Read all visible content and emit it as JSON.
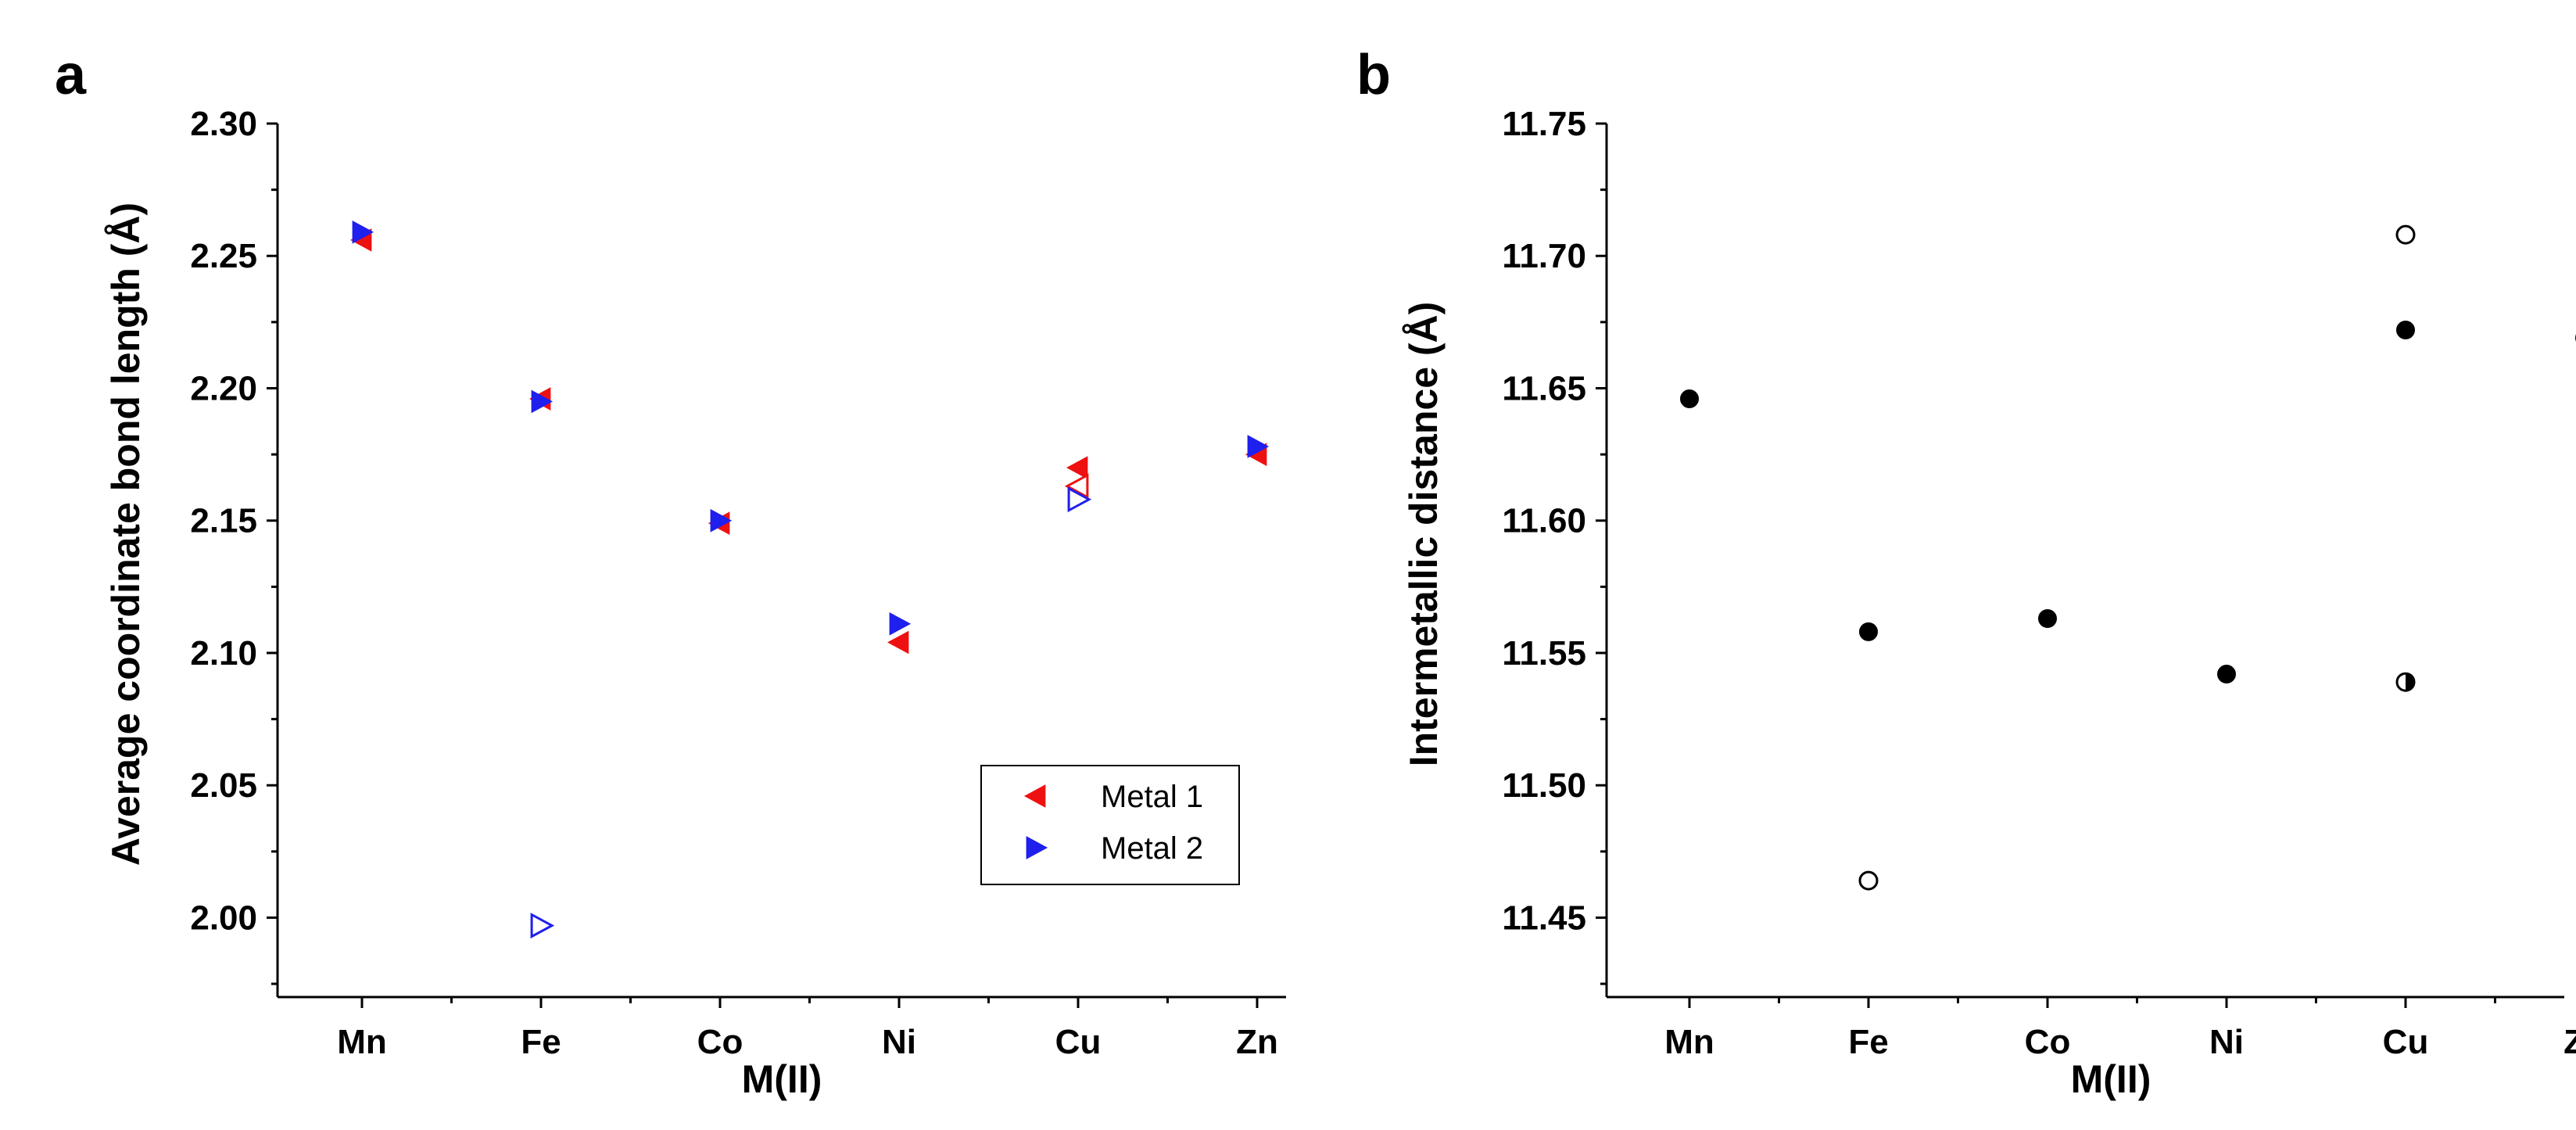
{
  "chart_data": [
    {
      "panel": "a",
      "type": "scatter",
      "xlabel": "M(II)",
      "ylabel": "Average coordinate bond length (Å)",
      "categories": [
        "Mn",
        "Fe",
        "Co",
        "Ni",
        "Cu",
        "Zn"
      ],
      "ylim": [
        1.97,
        2.3
      ],
      "yticks": [
        2.0,
        2.05,
        2.1,
        2.15,
        2.2,
        2.25,
        2.3
      ],
      "ytick_labels": [
        "2.00",
        "2.05",
        "2.10",
        "2.15",
        "2.20",
        "2.25",
        "2.30"
      ],
      "legend": {
        "position": "lower-right",
        "entries": [
          "Metal 1",
          "Metal 2"
        ]
      },
      "series": [
        {
          "name": "Metal 1",
          "marker": "triangle-left",
          "color": "#ee1111",
          "points": [
            {
              "x": "Mn",
              "y": 2.256,
              "filled": true
            },
            {
              "x": "Fe",
              "y": 2.196,
              "filled": true
            },
            {
              "x": "Co",
              "y": 2.149,
              "filled": true
            },
            {
              "x": "Ni",
              "y": 2.104,
              "filled": true
            },
            {
              "x": "Cu",
              "y": 2.17,
              "filled": true
            },
            {
              "x": "Cu",
              "y": 2.163,
              "filled": false
            },
            {
              "x": "Zn",
              "y": 2.175,
              "filled": true
            }
          ]
        },
        {
          "name": "Metal 2",
          "marker": "triangle-right",
          "color": "#1f1fee",
          "points": [
            {
              "x": "Mn",
              "y": 2.259,
              "filled": true
            },
            {
              "x": "Fe",
              "y": 2.195,
              "filled": true
            },
            {
              "x": "Fe",
              "y": 1.997,
              "filled": false
            },
            {
              "x": "Co",
              "y": 2.15,
              "filled": true
            },
            {
              "x": "Ni",
              "y": 2.111,
              "filled": true
            },
            {
              "x": "Cu",
              "y": 2.158,
              "filled": false
            },
            {
              "x": "Zn",
              "y": 2.178,
              "filled": true
            }
          ]
        }
      ]
    },
    {
      "panel": "b",
      "type": "scatter",
      "xlabel": "M(II)",
      "ylabel": "Intermetallic distance (Å)",
      "categories": [
        "Mn",
        "Fe",
        "Co",
        "Ni",
        "Cu",
        "Zn"
      ],
      "ylim": [
        11.42,
        11.75
      ],
      "yticks": [
        11.45,
        11.5,
        11.55,
        11.6,
        11.65,
        11.7,
        11.75
      ],
      "ytick_labels": [
        "11.45",
        "11.50",
        "11.55",
        "11.60",
        "11.65",
        "11.70",
        "11.75"
      ],
      "series": [
        {
          "name": "Intermetallic distance",
          "marker": "circle",
          "color": "#000000",
          "points": [
            {
              "x": "Mn",
              "y": 11.646,
              "fill": "full"
            },
            {
              "x": "Fe",
              "y": 11.558,
              "fill": "full"
            },
            {
              "x": "Fe",
              "y": 11.464,
              "fill": "none"
            },
            {
              "x": "Co",
              "y": 11.563,
              "fill": "full"
            },
            {
              "x": "Ni",
              "y": 11.542,
              "fill": "full"
            },
            {
              "x": "Cu",
              "y": 11.708,
              "fill": "none"
            },
            {
              "x": "Cu",
              "y": 11.672,
              "fill": "full"
            },
            {
              "x": "Cu",
              "y": 11.539,
              "fill": "half"
            },
            {
              "x": "Zn",
              "y": 11.669,
              "fill": "full"
            }
          ]
        }
      ]
    }
  ]
}
